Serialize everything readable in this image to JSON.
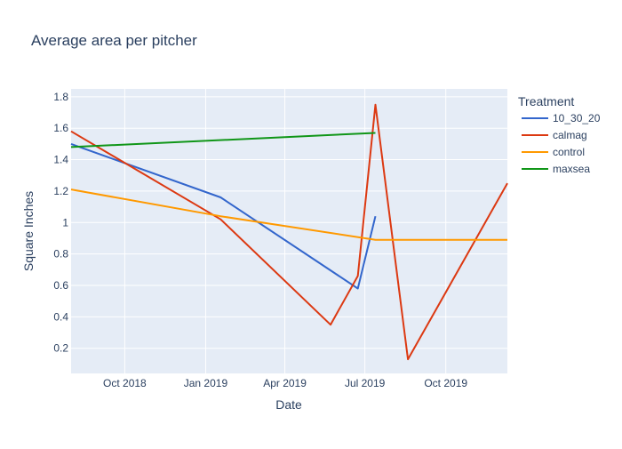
{
  "chart_data": {
    "type": "line",
    "title": "Average area per pitcher",
    "xlabel": "Date",
    "ylabel": "Square Inches",
    "legend_title": "Treatment",
    "legend_position": "right",
    "grid": true,
    "xlim": [
      "2018-08-01",
      "2019-12-10"
    ],
    "ylim": [
      0.04,
      1.85
    ],
    "x_ticks": [
      {
        "date": "2018-10-01",
        "label": "Oct 2018"
      },
      {
        "date": "2019-01-01",
        "label": "Jan 2019"
      },
      {
        "date": "2019-04-01",
        "label": "Apr 2019"
      },
      {
        "date": "2019-07-01",
        "label": "Jul 2019"
      },
      {
        "date": "2019-10-01",
        "label": "Oct 2019"
      }
    ],
    "y_ticks": [
      {
        "value": 0.2,
        "label": "0.2"
      },
      {
        "value": 0.4,
        "label": "0.4"
      },
      {
        "value": 0.6,
        "label": "0.6"
      },
      {
        "value": 0.8,
        "label": "0.8"
      },
      {
        "value": 1.0,
        "label": "1"
      },
      {
        "value": 1.2,
        "label": "1.2"
      },
      {
        "value": 1.4,
        "label": "1.4"
      },
      {
        "value": 1.6,
        "label": "1.6"
      },
      {
        "value": 1.8,
        "label": "1.8"
      }
    ],
    "series": [
      {
        "name": "10_30_20",
        "color": "#3366cc",
        "points": [
          {
            "x": "2018-08-01",
            "y": 1.5
          },
          {
            "x": "2019-01-18",
            "y": 1.16
          },
          {
            "x": "2019-06-23",
            "y": 0.58
          },
          {
            "x": "2019-07-13",
            "y": 1.04
          }
        ]
      },
      {
        "name": "calmag",
        "color": "#dc3912",
        "points": [
          {
            "x": "2018-08-01",
            "y": 1.58
          },
          {
            "x": "2019-01-18",
            "y": 1.02
          },
          {
            "x": "2019-05-23",
            "y": 0.35
          },
          {
            "x": "2019-06-23",
            "y": 0.66
          },
          {
            "x": "2019-07-13",
            "y": 1.75
          },
          {
            "x": "2019-08-19",
            "y": 0.13
          },
          {
            "x": "2019-12-10",
            "y": 1.25
          }
        ]
      },
      {
        "name": "control",
        "color": "#ff9900",
        "points": [
          {
            "x": "2018-08-01",
            "y": 1.21
          },
          {
            "x": "2019-01-18",
            "y": 1.04
          },
          {
            "x": "2019-07-13",
            "y": 0.89
          },
          {
            "x": "2019-12-10",
            "y": 0.89
          }
        ]
      },
      {
        "name": "maxsea",
        "color": "#109618",
        "points": [
          {
            "x": "2018-08-01",
            "y": 1.48
          },
          {
            "x": "2019-07-13",
            "y": 1.57
          }
        ]
      }
    ],
    "colors": {
      "plot_background": "#e5ecf6",
      "grid": "#ffffff",
      "text": "#2a3f5f"
    }
  }
}
